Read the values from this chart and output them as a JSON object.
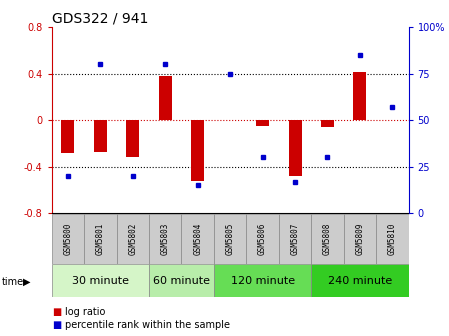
{
  "title": "GDS322 / 941",
  "samples": [
    "GSM5800",
    "GSM5801",
    "GSM5802",
    "GSM5803",
    "GSM5804",
    "GSM5805",
    "GSM5806",
    "GSM5807",
    "GSM5808",
    "GSM5809",
    "GSM5810"
  ],
  "log_ratio": [
    -0.28,
    -0.27,
    -0.32,
    0.38,
    -0.52,
    0.0,
    -0.05,
    -0.48,
    -0.06,
    0.41,
    0.0
  ],
  "percentile": [
    20,
    80,
    20,
    80,
    15,
    75,
    30,
    17,
    30,
    85,
    57
  ],
  "groups": [
    {
      "label": "30 minute",
      "start": 0,
      "end": 3,
      "color": "#d5f5c8"
    },
    {
      "label": "60 minute",
      "start": 3,
      "end": 5,
      "color": "#b8edaa"
    },
    {
      "label": "120 minute",
      "start": 5,
      "end": 8,
      "color": "#66dd55"
    },
    {
      "label": "240 minute",
      "start": 8,
      "end": 11,
      "color": "#33cc22"
    }
  ],
  "ylim_left": [
    -0.8,
    0.8
  ],
  "ylim_right": [
    0,
    100
  ],
  "bar_color": "#cc0000",
  "dot_color": "#0000cc",
  "background_color": "#ffffff",
  "dotted_lines": [
    0.4,
    0.0,
    -0.4
  ],
  "tick_fontsize": 7,
  "title_fontsize": 10,
  "sample_box_color": "#cccccc",
  "group_label_fontsize": 8
}
